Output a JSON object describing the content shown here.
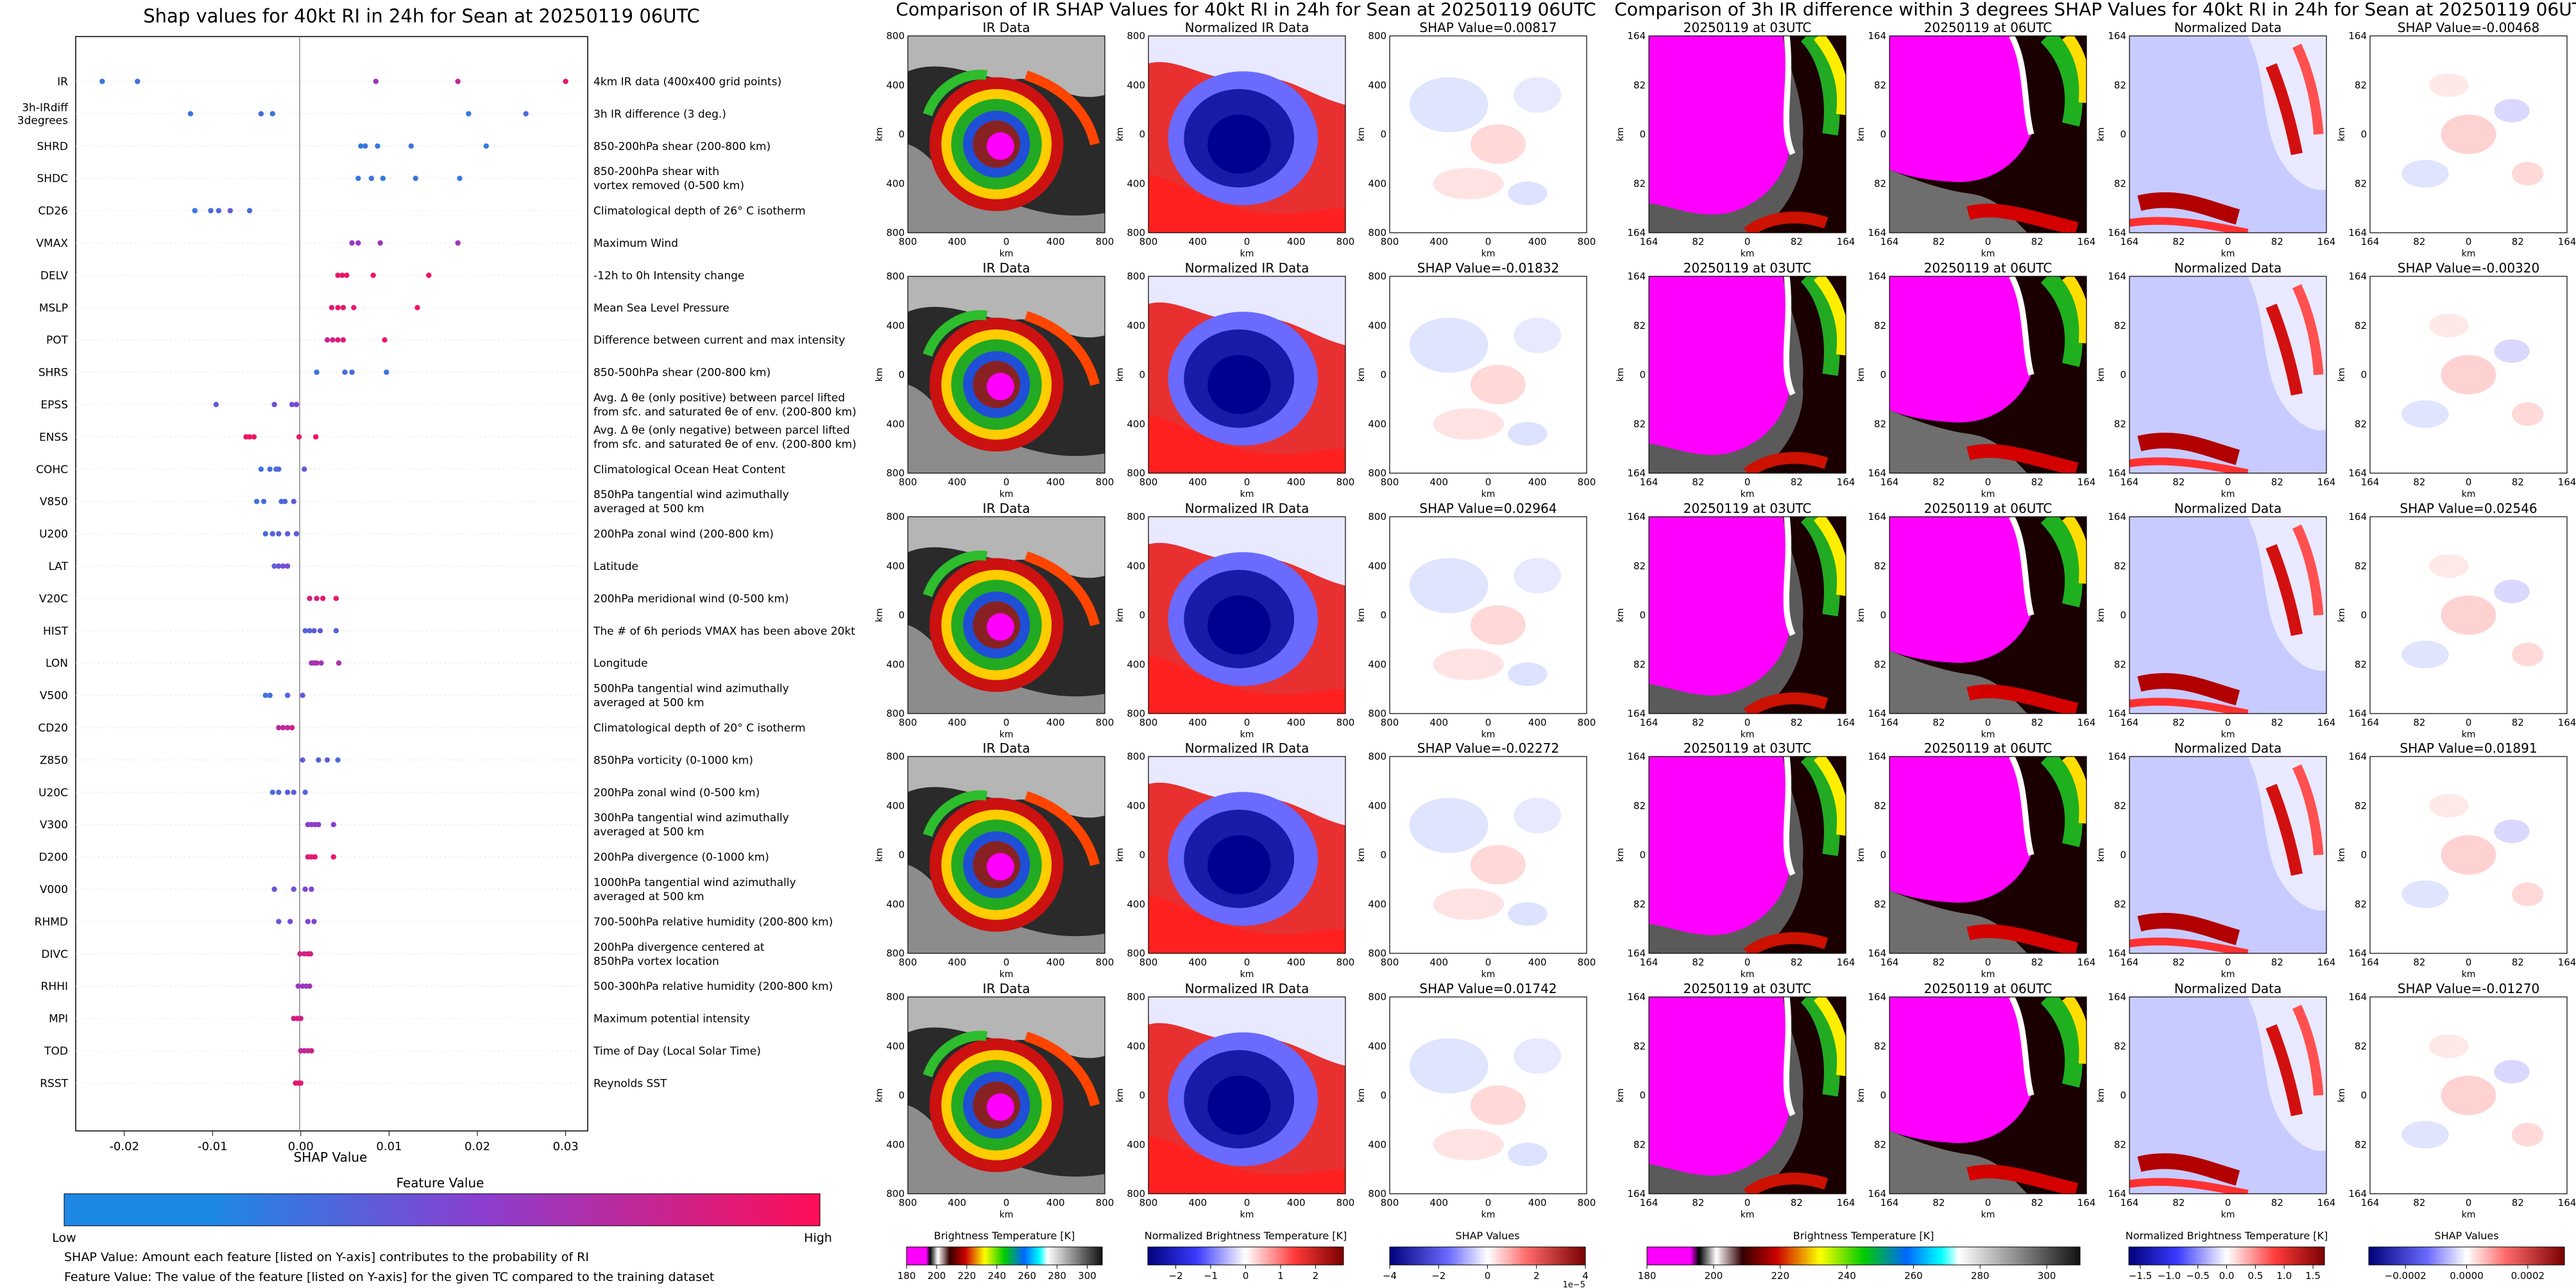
{
  "shap_panel": {
    "title": "Shap values for 40kt RI in 24h for Sean at 20250119 06UTC",
    "xlabel": "SHAP Value",
    "xticks": [
      "-0.02",
      "-0.01",
      "0.00",
      "0.01",
      "0.02",
      "0.03"
    ],
    "colorbar_title": "Feature Value",
    "colorbar_low": "Low",
    "colorbar_high": "High",
    "note_1": "SHAP Value: Amount each feature [listed on Y-axis] contributes to the probability of RI",
    "note_2": "Feature Value: The value of the feature [listed on Y-axis] for the given TC compared to the training dataset",
    "colors": {
      "low": "#1e88e5",
      "mid": "#8a3fd0",
      "high": "#ff0d57"
    }
  },
  "chart_data": [
    {
      "type": "scatter",
      "title": "Shap values for 40kt RI in 24h for Sean at 20250119 06UTC",
      "xlabel": "SHAP Value",
      "xlim": [
        -0.0255,
        0.0325
      ],
      "grid": false,
      "features": [
        {
          "name": "IR",
          "desc": "4km IR data (400x400 grid points)",
          "points": [
            [
              -0.0225,
              0.1
            ],
            [
              -0.0185,
              0.15
            ],
            [
              0.0085,
              0.6
            ],
            [
              0.0178,
              0.75
            ],
            [
              0.03,
              0.9
            ]
          ]
        },
        {
          "name": "3h-IRdiff\n3degrees",
          "desc": "3h IR difference (3 deg.)",
          "points": [
            [
              -0.0125,
              0.15
            ],
            [
              -0.0045,
              0.2
            ],
            [
              -0.0032,
              0.15
            ],
            [
              0.019,
              0.1
            ],
            [
              0.0255,
              0.2
            ]
          ]
        },
        {
          "name": "SHRD",
          "desc": "850-200hPa shear (200-800 km)",
          "points": [
            [
              0.0068,
              0.1
            ],
            [
              0.0073,
              0.15
            ],
            [
              0.0087,
              0.1
            ],
            [
              0.0125,
              0.15
            ],
            [
              0.021,
              0.1
            ]
          ]
        },
        {
          "name": "SHDC",
          "desc": "850-200hPa shear with\nvortex removed (0-500 km)",
          "points": [
            [
              0.0065,
              0.1
            ],
            [
              0.008,
              0.15
            ],
            [
              0.0093,
              0.1
            ],
            [
              0.013,
              0.15
            ],
            [
              0.018,
              0.1
            ]
          ]
        },
        {
          "name": "CD26",
          "desc": "Climatological depth of 26° C isotherm",
          "points": [
            [
              -0.012,
              0.1
            ],
            [
              -0.0102,
              0.2
            ],
            [
              -0.0093,
              0.25
            ],
            [
              -0.008,
              0.3
            ],
            [
              -0.0058,
              0.2
            ]
          ]
        },
        {
          "name": "VMAX",
          "desc": "Maximum Wind",
          "points": [
            [
              0.0058,
              0.55
            ],
            [
              0.0065,
              0.55
            ],
            [
              0.009,
              0.6
            ],
            [
              0.0178,
              0.6
            ]
          ]
        },
        {
          "name": "DELV",
          "desc": "-12h to 0h Intensity change",
          "points": [
            [
              0.0042,
              0.9
            ],
            [
              0.0047,
              0.92
            ],
            [
              0.0052,
              0.95
            ],
            [
              0.0082,
              0.95
            ],
            [
              0.0145,
              0.95
            ]
          ]
        },
        {
          "name": "MSLP",
          "desc": "Mean Sea Level Pressure",
          "points": [
            [
              0.0035,
              0.85
            ],
            [
              0.0042,
              0.9
            ],
            [
              0.0048,
              0.9
            ],
            [
              0.006,
              0.9
            ],
            [
              0.0132,
              0.95
            ]
          ]
        },
        {
          "name": "POT",
          "desc": "Difference between current and max intensity",
          "points": [
            [
              0.003,
              0.75
            ],
            [
              0.0036,
              0.8
            ],
            [
              0.0042,
              0.85
            ],
            [
              0.0048,
              0.85
            ],
            [
              0.0095,
              0.9
            ]
          ]
        },
        {
          "name": "SHRS",
          "desc": "850-500hPa shear (200-800 km)",
          "points": [
            [
              0.0018,
              0.15
            ],
            [
              0.005,
              0.2
            ],
            [
              0.0058,
              0.2
            ],
            [
              0.0097,
              0.15
            ]
          ]
        },
        {
          "name": "EPSS",
          "desc": "Avg. Δ θe (only positive) between parcel lifted\nfrom sfc. and saturated θe of env. (200-800 km)",
          "points": [
            [
              -0.0096,
              0.3
            ],
            [
              -0.003,
              0.4
            ],
            [
              -0.001,
              0.35
            ],
            [
              -0.0005,
              0.45
            ]
          ]
        },
        {
          "name": "ENSS",
          "desc": "Avg. Δ θe (only negative) between parcel lifted\nfrom sfc. and saturated θe of env. (200-800 km)",
          "points": [
            [
              -0.0062,
              0.95
            ],
            [
              -0.0058,
              0.95
            ],
            [
              -0.0053,
              0.95
            ],
            [
              -0.0002,
              0.9
            ],
            [
              0.0017,
              0.95
            ]
          ]
        },
        {
          "name": "COHC",
          "desc": "Climatological Ocean Heat Content",
          "points": [
            [
              -0.0045,
              0.15
            ],
            [
              -0.0035,
              0.2
            ],
            [
              -0.0028,
              0.2
            ],
            [
              -0.0025,
              0.25
            ],
            [
              0.0004,
              0.3
            ]
          ]
        },
        {
          "name": "V850",
          "desc": "850hPa tangential wind azimuthally\naveraged at 500 km",
          "points": [
            [
              -0.005,
              0.15
            ],
            [
              -0.0042,
              0.2
            ],
            [
              -0.0022,
              0.2
            ],
            [
              -0.0018,
              0.25
            ],
            [
              -0.0008,
              0.3
            ]
          ]
        },
        {
          "name": "U200",
          "desc": "200hPa zonal wind (200-800 km)",
          "points": [
            [
              -0.004,
              0.2
            ],
            [
              -0.0032,
              0.25
            ],
            [
              -0.0025,
              0.25
            ],
            [
              -0.0015,
              0.3
            ],
            [
              -0.0005,
              0.3
            ]
          ]
        },
        {
          "name": "LAT",
          "desc": "Latitude",
          "points": [
            [
              -0.003,
              0.3
            ],
            [
              -0.0025,
              0.35
            ],
            [
              -0.002,
              0.4
            ],
            [
              -0.0015,
              0.4
            ]
          ]
        },
        {
          "name": "V20C",
          "desc": "200hPa meridional wind (0-500 km)",
          "points": [
            [
              0.001,
              0.8
            ],
            [
              0.0018,
              0.85
            ],
            [
              0.0025,
              0.9
            ],
            [
              0.004,
              0.9
            ]
          ]
        },
        {
          "name": "HIST",
          "desc": "The # of 6h periods VMAX has been above 20kt",
          "points": [
            [
              0.0005,
              0.25
            ],
            [
              0.001,
              0.25
            ],
            [
              0.0015,
              0.3
            ],
            [
              0.0022,
              0.3
            ],
            [
              0.004,
              0.25
            ]
          ]
        },
        {
          "name": "LON",
          "desc": "Longitude",
          "points": [
            [
              0.0012,
              0.6
            ],
            [
              0.0015,
              0.6
            ],
            [
              0.0018,
              0.65
            ],
            [
              0.0023,
              0.6
            ],
            [
              0.0043,
              0.65
            ]
          ]
        },
        {
          "name": "V500",
          "desc": "500hPa tangential wind azimuthally\naveraged at 500 km",
          "points": [
            [
              -0.004,
              0.15
            ],
            [
              -0.0035,
              0.2
            ],
            [
              -0.0015,
              0.25
            ],
            [
              0.0002,
              0.3
            ]
          ]
        },
        {
          "name": "CD20",
          "desc": "Climatological depth of 20° C isotherm",
          "points": [
            [
              -0.0025,
              0.7
            ],
            [
              -0.002,
              0.75
            ],
            [
              -0.0015,
              0.7
            ],
            [
              -0.001,
              0.8
            ]
          ]
        },
        {
          "name": "Z850",
          "desc": "850hPa vorticity (0-1000 km)",
          "points": [
            [
              0.0002,
              0.3
            ],
            [
              0.002,
              0.25
            ],
            [
              0.003,
              0.3
            ],
            [
              0.0042,
              0.2
            ]
          ]
        },
        {
          "name": "U20C",
          "desc": "200hPa zonal wind (0-500 km)",
          "points": [
            [
              -0.0032,
              0.2
            ],
            [
              -0.0025,
              0.25
            ],
            [
              -0.0015,
              0.3
            ],
            [
              -0.0008,
              0.3
            ],
            [
              0.0005,
              0.25
            ]
          ]
        },
        {
          "name": "V300",
          "desc": "300hPa tangential wind azimuthally\naveraged at 500 km",
          "points": [
            [
              0.0008,
              0.5
            ],
            [
              0.0012,
              0.5
            ],
            [
              0.0016,
              0.55
            ],
            [
              0.002,
              0.5
            ],
            [
              0.0037,
              0.5
            ]
          ]
        },
        {
          "name": "D200",
          "desc": "200hPa divergence (0-1000 km)",
          "points": [
            [
              0.0008,
              0.85
            ],
            [
              0.0012,
              0.9
            ],
            [
              0.0016,
              0.9
            ],
            [
              0.0037,
              0.9
            ]
          ]
        },
        {
          "name": "V000",
          "desc": "1000hPa tangential wind azimuthally\naveraged at 500 km",
          "points": [
            [
              -0.003,
              0.35
            ],
            [
              -0.0008,
              0.4
            ],
            [
              0.0005,
              0.45
            ],
            [
              0.0012,
              0.45
            ]
          ]
        },
        {
          "name": "RHMD",
          "desc": "700-500hPa relative humidity (200-800 km)",
          "points": [
            [
              -0.0025,
              0.35
            ],
            [
              -0.0012,
              0.4
            ],
            [
              0.0008,
              0.45
            ],
            [
              0.0015,
              0.45
            ]
          ]
        },
        {
          "name": "DIVC",
          "desc": "200hPa divergence centered at\n850hPa vortex location",
          "points": [
            [
              -0.0001,
              0.8
            ],
            [
              0.0004,
              0.8
            ],
            [
              0.0008,
              0.85
            ],
            [
              0.0011,
              0.8
            ]
          ]
        },
        {
          "name": "RHHI",
          "desc": "500-300hPa relative humidity (200-800 km)",
          "points": [
            [
              -0.0003,
              0.55
            ],
            [
              0.0002,
              0.6
            ],
            [
              0.0006,
              0.55
            ],
            [
              0.001,
              0.6
            ]
          ]
        },
        {
          "name": "MPI",
          "desc": "Maximum potential intensity",
          "points": [
            [
              -0.0008,
              0.8
            ],
            [
              -0.0004,
              0.85
            ],
            [
              0.0,
              0.8
            ]
          ]
        },
        {
          "name": "TOD",
          "desc": "Time of Day (Local Solar Time)",
          "points": [
            [
              0.0,
              0.7
            ],
            [
              0.0004,
              0.75
            ],
            [
              0.0008,
              0.7
            ],
            [
              0.0012,
              0.8
            ]
          ]
        },
        {
          "name": "RSST",
          "desc": "Reynolds SST",
          "points": [
            [
              -0.0006,
              0.85
            ],
            [
              -0.0003,
              0.9
            ],
            [
              0.0,
              0.9
            ]
          ]
        }
      ]
    },
    {
      "type": "heatmap",
      "title": "Comparison of IR SHAP Values for 40kt RI in 24h for Sean at 20250119 06UTC",
      "columns": [
        "IR Data",
        "Normalized IR Data",
        "SHAP Value"
      ],
      "shap_values": [
        "0.00817",
        "-0.01832",
        "0.02964",
        "-0.02272",
        "0.01742"
      ],
      "axis_ticks": [
        "800",
        "400",
        "0",
        "400",
        "800"
      ],
      "axis_label": "km",
      "colorbars": [
        {
          "label": "Brightness Temperature [K]",
          "ticks": [
            "180",
            "200",
            "220",
            "240",
            "260",
            "280",
            "300"
          ],
          "range": [
            180,
            310
          ]
        },
        {
          "label": "Normalized Brightness Temperature [K]",
          "ticks": [
            "−2",
            "−1",
            "0",
            "1",
            "2"
          ],
          "range": [
            -2.8,
            2.8
          ]
        },
        {
          "label": "SHAP Values",
          "ticks": [
            "−4",
            "−2",
            "0",
            "2",
            "4"
          ],
          "range": [
            -4,
            4
          ],
          "offset": "1e−5"
        }
      ]
    },
    {
      "type": "heatmap",
      "title": "Comparison of 3h IR difference within 3 degrees SHAP Values for 40kt RI in 24h for Sean at 20250119 06UTC",
      "columns": [
        "20250119 at 03UTC",
        "20250119 at 06UTC",
        "Normalized Data",
        "SHAP Value"
      ],
      "shap_values": [
        "-0.00468",
        "-0.00320",
        "0.02546",
        "0.01891",
        "-0.01270"
      ],
      "axis_ticks": [
        "164",
        "82",
        "0",
        "82",
        "164"
      ],
      "axis_label": "km",
      "colorbars": [
        {
          "label": "Brightness Temperature [K]",
          "ticks": [
            "180",
            "200",
            "220",
            "240",
            "260",
            "280",
            "300"
          ],
          "range": [
            180,
            310
          ]
        },
        {
          "label": "Normalized Brightness Temperature [K]",
          "ticks": [
            "−1.5",
            "−1.0",
            "−0.5",
            "0.0",
            "0.5",
            "1.0",
            "1.5"
          ],
          "range": [
            -1.7,
            1.7
          ]
        },
        {
          "label": "SHAP Values",
          "ticks": [
            "−0.0002",
            "0.0000",
            "0.0002"
          ],
          "range": [
            -0.00032,
            0.00032
          ]
        }
      ]
    }
  ]
}
